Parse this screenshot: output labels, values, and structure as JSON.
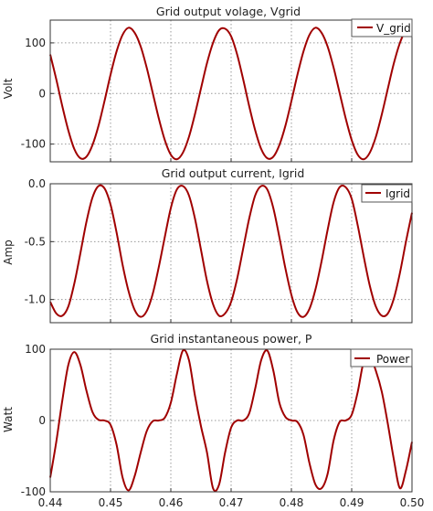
{
  "colors": {
    "series": "#a00000",
    "grid": "#999999",
    "frame": "#333333"
  },
  "chart_data": [
    {
      "type": "line",
      "title": "Grid output volage, Vgrid",
      "ylabel": "Volt",
      "xlabel": "",
      "xlim": [
        0.44,
        0.5
      ],
      "ylim": [
        -135,
        145
      ],
      "yticks": [
        -100,
        0,
        100
      ],
      "ytick_labels": [
        "-100",
        "0",
        "100"
      ],
      "xticks": [
        0.44,
        0.45,
        0.46,
        0.47,
        0.48,
        0.49,
        0.5
      ],
      "xtick_labels": [],
      "grid": true,
      "legend": "top-right",
      "series": [
        {
          "name": "V_grid",
          "x": [
            0.44,
            0.441,
            0.442,
            0.443,
            0.444,
            0.445,
            0.446,
            0.447,
            0.448,
            0.449,
            0.45,
            0.451,
            0.452,
            0.453,
            0.454,
            0.455,
            0.456,
            0.457,
            0.458,
            0.459,
            0.46,
            0.461,
            0.462,
            0.463,
            0.464,
            0.465,
            0.466,
            0.467,
            0.468,
            0.469,
            0.47,
            0.471,
            0.472,
            0.473,
            0.474,
            0.475,
            0.476,
            0.477,
            0.478,
            0.479,
            0.48,
            0.481,
            0.482,
            0.483,
            0.484,
            0.485,
            0.486,
            0.487,
            0.488,
            0.489,
            0.49,
            0.491,
            0.492,
            0.493,
            0.494,
            0.495,
            0.496,
            0.497,
            0.498,
            0.499,
            0.5
          ],
          "values": [
            77,
            28,
            -25,
            -73,
            -110,
            -128,
            -125,
            -102,
            -64,
            -15,
            37,
            83,
            116,
            130,
            120,
            93,
            51,
            1,
            -49,
            -92,
            -121,
            -130,
            -117,
            -86,
            -41,
            10,
            60,
            100,
            125,
            128,
            113,
            77,
            28,
            -25,
            -73,
            -110,
            -128,
            -125,
            -102,
            -64,
            -15,
            37,
            83,
            116,
            130,
            120,
            93,
            51,
            1,
            -49,
            -92,
            -121,
            -130,
            -117,
            -86,
            -41,
            10,
            60,
            100,
            125,
            128
          ]
        }
      ]
    },
    {
      "type": "line",
      "title": "Grid output current, Igrid",
      "ylabel": "Amp",
      "xlabel": "",
      "xlim": [
        0.44,
        0.5
      ],
      "ylim": [
        -1.2,
        0
      ],
      "yticks": [
        -1.0,
        -0.5,
        0.0
      ],
      "ytick_labels": [
        "-1.0",
        "-0.5",
        "0.0"
      ],
      "xticks": [
        0.44,
        0.45,
        0.46,
        0.47,
        0.48,
        0.49,
        0.5
      ],
      "xtick_labels": [],
      "grid": true,
      "legend": "top-right",
      "series": [
        {
          "name": "Igrid",
          "x": [
            0.44,
            0.441,
            0.442,
            0.443,
            0.444,
            0.445,
            0.446,
            0.447,
            0.448,
            0.449,
            0.45,
            0.451,
            0.452,
            0.453,
            0.454,
            0.455,
            0.456,
            0.457,
            0.458,
            0.459,
            0.46,
            0.461,
            0.462,
            0.463,
            0.464,
            0.465,
            0.466,
            0.467,
            0.468,
            0.469,
            0.47,
            0.471,
            0.472,
            0.473,
            0.474,
            0.475,
            0.476,
            0.477,
            0.478,
            0.479,
            0.48,
            0.481,
            0.482,
            0.483,
            0.484,
            0.485,
            0.486,
            0.487,
            0.488,
            0.489,
            0.49,
            0.491,
            0.492,
            0.493,
            0.494,
            0.495,
            0.496,
            0.497,
            0.498,
            0.499,
            0.5
          ],
          "values": [
            -1.02,
            -1.12,
            -1.14,
            -1.06,
            -0.86,
            -0.6,
            -0.33,
            -0.12,
            -0.02,
            -0.04,
            -0.18,
            -0.42,
            -0.7,
            -0.93,
            -1.09,
            -1.15,
            -1.1,
            -0.95,
            -0.72,
            -0.46,
            -0.21,
            -0.05,
            -0.02,
            -0.1,
            -0.3,
            -0.57,
            -0.84,
            -1.04,
            -1.14,
            -1.12,
            -1.02,
            -0.82,
            -0.56,
            -0.3,
            -0.1,
            -0.02,
            -0.05,
            -0.21,
            -0.46,
            -0.73,
            -0.96,
            -1.11,
            -1.15,
            -1.08,
            -0.91,
            -0.67,
            -0.4,
            -0.16,
            -0.03,
            -0.03,
            -0.13,
            -0.36,
            -0.63,
            -0.88,
            -1.06,
            -1.14,
            -1.12,
            -0.99,
            -0.77,
            -0.5,
            -0.25
          ]
        }
      ]
    },
    {
      "type": "line",
      "title": "Grid instantaneous power, P",
      "ylabel": "Watt",
      "xlabel": "",
      "xlim": [
        0.44,
        0.5
      ],
      "ylim": [
        -100,
        100
      ],
      "yticks": [
        -100,
        0,
        100
      ],
      "ytick_labels": [
        "-100",
        "0",
        "100"
      ],
      "xticks": [
        0.44,
        0.45,
        0.46,
        0.47,
        0.48,
        0.49,
        0.5
      ],
      "xtick_labels": [
        "0.44",
        "0.45",
        "0.46",
        "0.47",
        "0.48",
        "0.49",
        "0.50"
      ],
      "grid": true,
      "legend": "top-right",
      "series": [
        {
          "name": "Power",
          "x": [
            0.44,
            0.441,
            0.442,
            0.443,
            0.444,
            0.445,
            0.446,
            0.447,
            0.448,
            0.449,
            0.45,
            0.451,
            0.452,
            0.453,
            0.454,
            0.455,
            0.456,
            0.457,
            0.458,
            0.459,
            0.46,
            0.461,
            0.462,
            0.463,
            0.464,
            0.465,
            0.466,
            0.467,
            0.468,
            0.469,
            0.47,
            0.471,
            0.472,
            0.473,
            0.474,
            0.475,
            0.476,
            0.477,
            0.478,
            0.479,
            0.48,
            0.481,
            0.482,
            0.483,
            0.484,
            0.485,
            0.486,
            0.487,
            0.488,
            0.489,
            0.49,
            0.491,
            0.492,
            0.493,
            0.494,
            0.495,
            0.496,
            0.497,
            0.498,
            0.499,
            0.5
          ],
          "values": [
            -80,
            -30,
            28,
            78,
            96,
            78,
            42,
            12,
            1,
            0,
            -6,
            -34,
            -80,
            -98,
            -78,
            -45,
            -15,
            -1,
            0,
            4,
            25,
            65,
            98,
            85,
            35,
            -8,
            -45,
            -95,
            -90,
            -45,
            -10,
            0,
            0,
            10,
            45,
            85,
            98,
            70,
            25,
            5,
            0,
            -2,
            -20,
            -60,
            -90,
            -95,
            -75,
            -28,
            -2,
            0,
            8,
            40,
            83,
            90,
            70,
            40,
            -5,
            -55,
            -95,
            -70,
            -30
          ]
        }
      ]
    }
  ]
}
